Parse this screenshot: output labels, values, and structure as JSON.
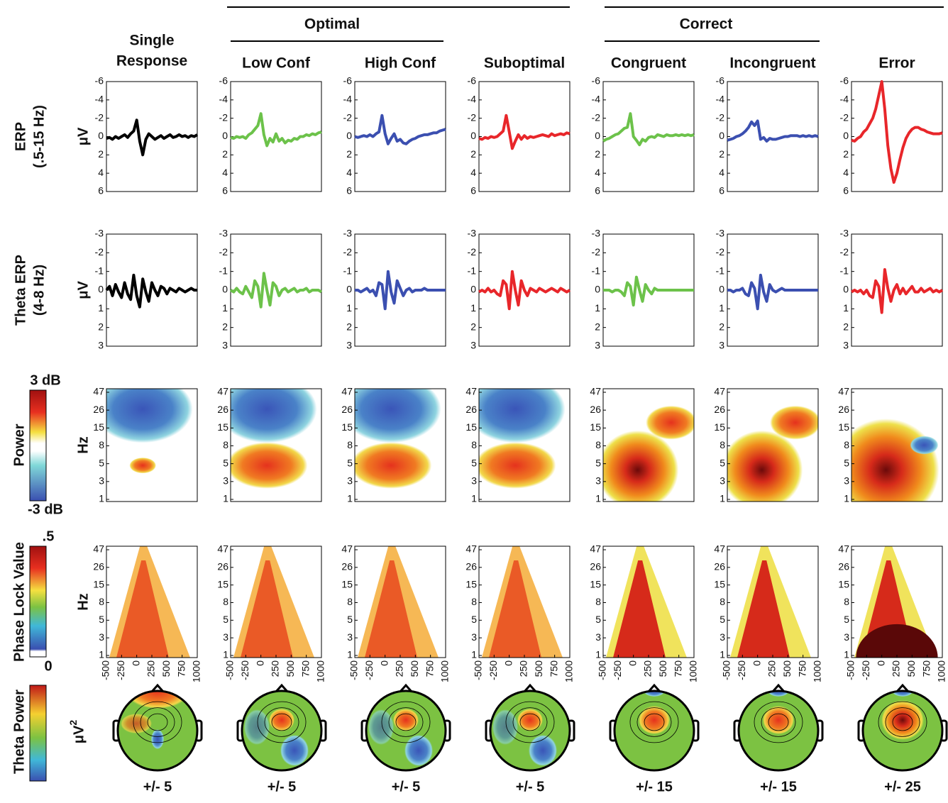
{
  "columns": [
    [
      "Single",
      "Response"
    ],
    [
      "Low Conf"
    ],
    [
      "High Conf"
    ],
    [
      "Suboptimal"
    ],
    [
      "Congruent"
    ],
    [
      "Incongruent"
    ],
    [
      "Error"
    ]
  ],
  "groups": [
    "Optimal",
    "Correct"
  ],
  "chart_data": [
    {
      "type": "line",
      "row_label": [
        "ERP",
        "(.5-15 Hz)"
      ],
      "y_label": "μV",
      "ylim": [
        6,
        -6
      ],
      "yticks": [
        -6,
        -4,
        -2,
        0,
        2,
        4,
        6
      ],
      "xlim": [
        -500,
        1000
      ],
      "x": [
        -500,
        -450,
        -400,
        -350,
        -300,
        -250,
        -200,
        -150,
        -100,
        -50,
        0,
        50,
        100,
        150,
        200,
        250,
        300,
        350,
        400,
        450,
        500,
        550,
        600,
        650,
        700,
        750,
        800,
        850,
        900,
        950,
        1000
      ],
      "series": [
        {
          "color": "#000000",
          "values": [
            0.2,
            0.1,
            0.3,
            0.0,
            0.2,
            0.0,
            -0.2,
            0.1,
            -0.3,
            -0.6,
            -1.8,
            0.5,
            2.0,
            0.3,
            -0.3,
            0.0,
            0.3,
            0.1,
            -0.1,
            0.2,
            0.0,
            -0.2,
            0.1,
            0.0,
            -0.2,
            0.0,
            -0.1,
            0.1,
            -0.1,
            0.0,
            -0.2
          ]
        },
        {
          "color": "#6cc24a",
          "values": [
            0.1,
            0.2,
            0.0,
            0.1,
            0.0,
            0.2,
            -0.2,
            -0.4,
            -0.8,
            -1.2,
            -2.5,
            -0.2,
            1.0,
            0.2,
            0.6,
            -0.3,
            0.5,
            0.2,
            0.7,
            0.4,
            0.5,
            0.2,
            0.3,
            0.0,
            0.0,
            -0.2,
            -0.1,
            -0.3,
            -0.2,
            -0.4,
            -0.5
          ]
        },
        {
          "color": "#3b4fb0",
          "values": [
            0.0,
            0.1,
            0.0,
            -0.1,
            0.0,
            -0.2,
            0.0,
            -0.3,
            -0.5,
            -2.3,
            -0.3,
            0.8,
            0.2,
            -0.3,
            0.5,
            0.3,
            0.7,
            0.8,
            0.5,
            0.3,
            0.2,
            0.0,
            -0.1,
            -0.2,
            -0.2,
            -0.3,
            -0.4,
            -0.4,
            -0.6,
            -0.7,
            -0.8
          ]
        },
        {
          "color": "#e8262a",
          "values": [
            0.2,
            0.3,
            0.1,
            0.2,
            0.0,
            0.1,
            0.0,
            -0.3,
            -0.6,
            -2.3,
            -0.5,
            1.3,
            0.5,
            -0.2,
            0.3,
            -0.1,
            0.2,
            0.0,
            0.1,
            0.0,
            -0.1,
            -0.2,
            -0.1,
            0.0,
            -0.3,
            -0.1,
            -0.2,
            -0.3,
            -0.2,
            -0.4,
            -0.3
          ]
        },
        {
          "color": "#6cc24a",
          "values": [
            0.5,
            0.3,
            0.2,
            0.0,
            -0.2,
            -0.3,
            -0.6,
            -0.9,
            -1.0,
            -2.5,
            0.0,
            0.4,
            0.9,
            0.3,
            0.5,
            0.1,
            0.0,
            0.1,
            -0.2,
            -0.1,
            0.0,
            -0.2,
            -0.1,
            -0.1,
            -0.2,
            -0.1,
            -0.2,
            -0.1,
            -0.2,
            -0.1,
            -0.2
          ]
        },
        {
          "color": "#3b4fb0",
          "values": [
            0.4,
            0.3,
            0.2,
            0.0,
            -0.1,
            -0.3,
            -0.6,
            -1.0,
            -1.6,
            -1.2,
            -1.7,
            0.3,
            0.1,
            0.5,
            0.2,
            0.3,
            0.3,
            0.2,
            0.1,
            0.0,
            0.0,
            -0.1,
            -0.1,
            -0.1,
            0.0,
            -0.1,
            0.0,
            -0.1,
            0.0,
            -0.1,
            0.0
          ]
        },
        {
          "color": "#e8262a",
          "values": [
            0.4,
            0.5,
            0.2,
            0.0,
            -0.5,
            -0.8,
            -1.4,
            -2.0,
            -3.0,
            -4.5,
            -6.0,
            -3.0,
            1.0,
            3.5,
            5.0,
            4.0,
            2.5,
            1.2,
            0.2,
            -0.4,
            -0.8,
            -1.0,
            -1.0,
            -0.8,
            -0.7,
            -0.5,
            -0.4,
            -0.3,
            -0.3,
            -0.3,
            -0.4
          ]
        }
      ]
    },
    {
      "type": "line",
      "row_label": [
        "Theta ERP",
        "(4-8 Hz)"
      ],
      "y_label": "μV",
      "ylim": [
        3,
        -3
      ],
      "yticks": [
        -3,
        -2,
        -1,
        0,
        1,
        2,
        3
      ],
      "xlim": [
        -500,
        1000
      ],
      "x": [
        -500,
        -450,
        -400,
        -350,
        -300,
        -250,
        -200,
        -150,
        -100,
        -50,
        0,
        50,
        100,
        150,
        200,
        250,
        300,
        350,
        400,
        450,
        500,
        550,
        600,
        650,
        700,
        750,
        800,
        850,
        900,
        950,
        1000
      ],
      "series": [
        {
          "color": "#000000",
          "values": [
            0.0,
            -0.2,
            0.3,
            -0.3,
            0.1,
            0.4,
            -0.4,
            0.2,
            0.5,
            -0.8,
            0.3,
            0.9,
            -0.6,
            0.1,
            0.6,
            -0.4,
            0.0,
            0.3,
            -0.2,
            -0.1,
            0.2,
            -0.1,
            0.0,
            0.1,
            -0.1,
            0.0,
            0.1,
            0.0,
            -0.1,
            0.0,
            0.0
          ]
        },
        {
          "color": "#6cc24a",
          "values": [
            0.0,
            0.1,
            -0.1,
            0.1,
            0.2,
            -0.2,
            0.1,
            0.4,
            -0.5,
            -0.2,
            0.9,
            -0.9,
            0.0,
            0.8,
            -0.4,
            -0.2,
            0.3,
            0.0,
            -0.1,
            0.1,
            0.0,
            -0.1,
            0.1,
            0.0,
            0.0,
            -0.1,
            0.1,
            0.0,
            0.0,
            0.0,
            0.1
          ]
        },
        {
          "color": "#3b4fb0",
          "values": [
            0.0,
            0.0,
            0.1,
            0.0,
            -0.1,
            0.1,
            0.0,
            0.3,
            -0.4,
            -0.3,
            1.0,
            -1.0,
            0.1,
            0.7,
            -0.5,
            -0.1,
            0.3,
            0.0,
            -0.1,
            0.1,
            0.0,
            0.0,
            0.0,
            -0.1,
            0.0,
            0.0,
            0.0,
            0.0,
            0.0,
            0.0,
            0.0
          ]
        },
        {
          "color": "#e8262a",
          "values": [
            0.1,
            0.0,
            0.1,
            -0.1,
            0.1,
            0.0,
            0.2,
            0.3,
            -0.5,
            -0.3,
            1.0,
            -1.0,
            0.0,
            0.8,
            -0.5,
            0.0,
            0.3,
            -0.1,
            0.0,
            0.1,
            -0.1,
            0.0,
            0.1,
            0.0,
            -0.1,
            0.0,
            0.1,
            -0.1,
            0.0,
            0.1,
            0.0
          ]
        },
        {
          "color": "#6cc24a",
          "values": [
            0.0,
            0.0,
            0.0,
            0.1,
            0.0,
            0.0,
            0.1,
            0.3,
            -0.4,
            -0.2,
            0.8,
            -0.7,
            0.0,
            0.6,
            -0.3,
            0.0,
            0.2,
            -0.1,
            0.0,
            0.0,
            0.0,
            0.0,
            0.0,
            0.0,
            0.0,
            0.0,
            0.0,
            0.0,
            0.0,
            0.0,
            0.0
          ]
        },
        {
          "color": "#3b4fb0",
          "values": [
            0.0,
            0.0,
            0.1,
            0.0,
            0.0,
            -0.1,
            0.2,
            0.3,
            -0.4,
            -0.1,
            1.0,
            -0.8,
            0.1,
            0.6,
            -0.3,
            0.0,
            0.1,
            0.0,
            -0.1,
            0.0,
            0.0,
            0.0,
            0.0,
            0.0,
            0.0,
            0.0,
            0.0,
            0.0,
            0.0,
            0.0,
            0.0
          ]
        },
        {
          "color": "#e8262a",
          "values": [
            0.1,
            0.0,
            0.1,
            0.0,
            0.2,
            0.0,
            0.3,
            0.4,
            -0.5,
            -0.2,
            1.2,
            -1.1,
            -0.1,
            0.6,
            0.0,
            -0.3,
            0.2,
            -0.1,
            0.2,
            0.0,
            -0.2,
            0.1,
            0.1,
            -0.1,
            0.1,
            0.0,
            -0.1,
            0.1,
            0.0,
            0.1,
            0.0
          ]
        }
      ]
    },
    {
      "type": "heatmap",
      "row_label": [
        "Power"
      ],
      "y_label": "Hz",
      "yticks": [
        1,
        3,
        5,
        8,
        15,
        26,
        47
      ],
      "colorbar_labels": [
        "3 dB",
        "-3 dB"
      ]
    },
    {
      "type": "heatmap",
      "row_label": [
        "Phase Lock Value"
      ],
      "y_label": "Hz",
      "yticks": [
        1,
        3,
        5,
        8,
        15,
        26,
        47
      ],
      "xlim": [
        -500,
        1000
      ],
      "xticks": [
        -500,
        -250,
        0,
        250,
        500,
        750,
        1000
      ],
      "colorbar_labels": [
        ".5",
        "0"
      ]
    },
    {
      "type": "topomap",
      "row_label": [
        "Theta Power"
      ],
      "y_label": "μV",
      "y_label_sup": "2",
      "scale_labels": [
        "+/- 5",
        "+/- 5",
        "+/- 5",
        "+/- 5",
        "+/- 15",
        "+/- 15",
        "+/- 25"
      ]
    }
  ]
}
